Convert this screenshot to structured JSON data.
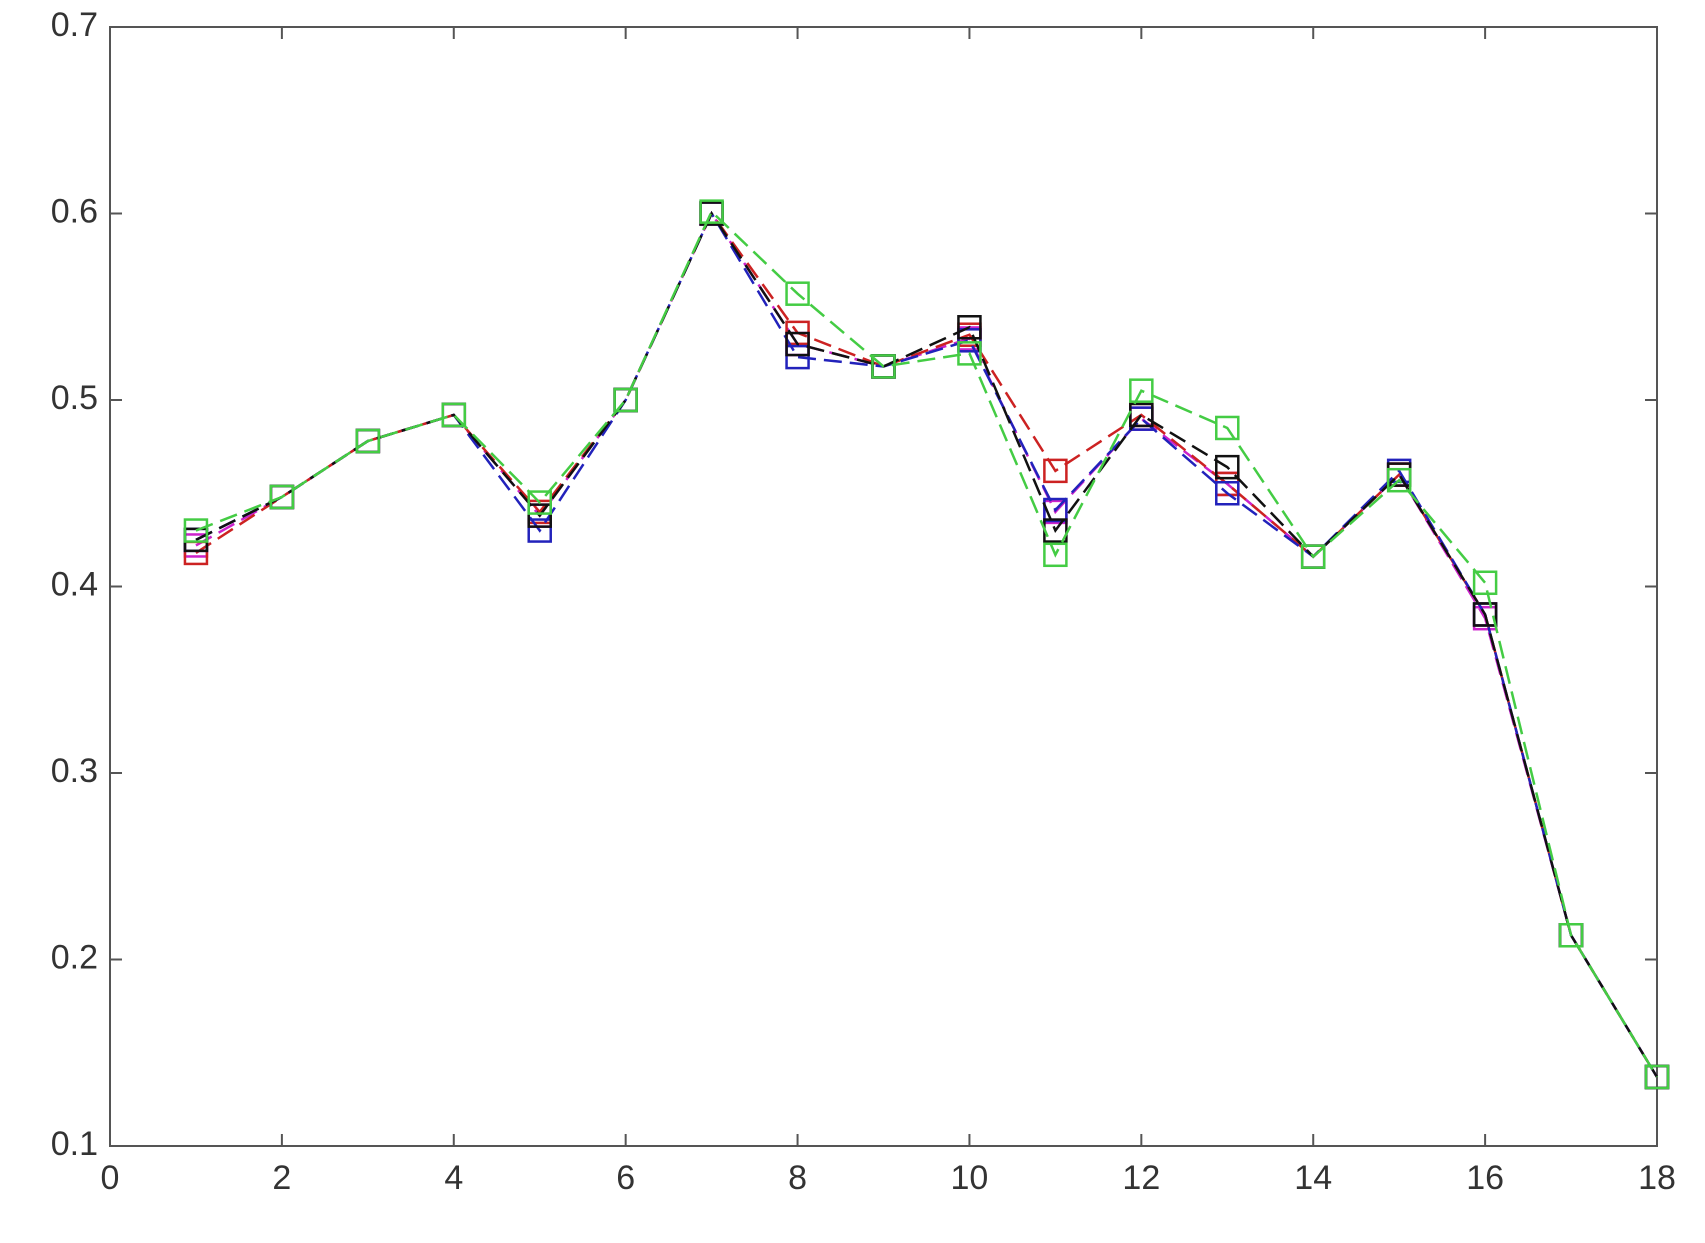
{
  "chart_data": {
    "type": "line",
    "x": [
      1,
      2,
      3,
      4,
      5,
      6,
      7,
      8,
      9,
      10,
      11,
      12,
      13,
      14,
      15,
      16,
      17,
      18
    ],
    "series": [
      {
        "color": "#cc22cc",
        "values": [
          0.422,
          0.448,
          0.478,
          0.492,
          0.438,
          0.5,
          0.6,
          0.53,
          0.518,
          0.533,
          0.44,
          0.49,
          0.455,
          0.416,
          0.46,
          0.383,
          0.213,
          0.137
        ]
      },
      {
        "color": "#cc2222",
        "values": [
          0.418,
          0.448,
          0.478,
          0.492,
          0.44,
          0.5,
          0.6,
          0.536,
          0.518,
          0.535,
          0.462,
          0.492,
          0.455,
          0.416,
          0.46,
          0.385,
          0.213,
          0.137
        ]
      },
      {
        "color": "#2222bb",
        "values": [
          0.425,
          0.448,
          0.478,
          0.492,
          0.43,
          0.5,
          0.6,
          0.523,
          0.518,
          0.532,
          0.441,
          0.49,
          0.45,
          0.416,
          0.462,
          0.385,
          0.213,
          0.137
        ]
      },
      {
        "color": "#111111",
        "values": [
          0.425,
          0.448,
          0.478,
          0.492,
          0.438,
          0.5,
          0.6,
          0.53,
          0.518,
          0.539,
          0.43,
          0.492,
          0.464,
          0.416,
          0.46,
          0.385,
          0.213,
          0.137
        ]
      },
      {
        "color": "#44cc44",
        "values": [
          0.43,
          0.448,
          0.478,
          0.492,
          0.445,
          0.5,
          0.601,
          0.557,
          0.518,
          0.525,
          0.417,
          0.505,
          0.485,
          0.416,
          0.457,
          0.402,
          0.213,
          0.137
        ]
      }
    ],
    "xlim": [
      0,
      18
    ],
    "xticks": [
      0,
      2,
      4,
      6,
      8,
      10,
      12,
      14,
      16,
      18
    ],
    "ylim": [
      0.1,
      0.7
    ],
    "yticks": [
      0.1,
      0.2,
      0.3,
      0.4,
      0.5,
      0.6,
      0.7
    ],
    "marker": "square",
    "line_style": "dashed",
    "grid": false
  }
}
